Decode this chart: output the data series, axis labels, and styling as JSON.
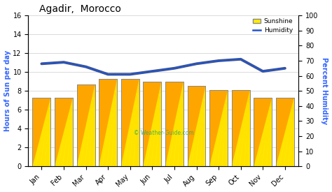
{
  "months": [
    "Jan",
    "Feb",
    "Mar",
    "Apr",
    "May",
    "Jun",
    "Jul",
    "Aug",
    "Sep",
    "Oct",
    "Nov",
    "Dec"
  ],
  "sunshine_hours": [
    7.3,
    7.3,
    8.7,
    9.3,
    9.3,
    9.0,
    9.0,
    8.5,
    8.1,
    8.1,
    7.3,
    7.3
  ],
  "humidity_percent": [
    68,
    69,
    66,
    61,
    61,
    63,
    65,
    68,
    70,
    71,
    63,
    65
  ],
  "bar_color_dark": "#FFA500",
  "bar_color_light": "#FFEE00",
  "bar_color_mid": "#FFD700",
  "bar_edge_color": "#888888",
  "line_color": "#2255cc",
  "line_shadow_color": "#555566",
  "bg_color": "#ffffff",
  "grid_color": "#cccccc",
  "title": "Agadir,  Morocco",
  "ylabel_left": "Hours of Sun per day",
  "ylabel_right": "Percent Humidity",
  "ylim_left": [
    0,
    16
  ],
  "ylim_right": [
    0,
    100
  ],
  "yticks_left": [
    0,
    2,
    4,
    6,
    8,
    10,
    12,
    14,
    16
  ],
  "yticks_right": [
    0,
    10,
    20,
    30,
    40,
    50,
    60,
    70,
    80,
    90,
    100
  ],
  "legend_sunshine": "Sunshine",
  "legend_humidity": "Humidity",
  "watermark": "© Weather-Guide.com",
  "title_fontsize": 10,
  "tick_fontsize": 7,
  "axis_label_color": "#3366ff",
  "watermark_color": "#33aa55"
}
